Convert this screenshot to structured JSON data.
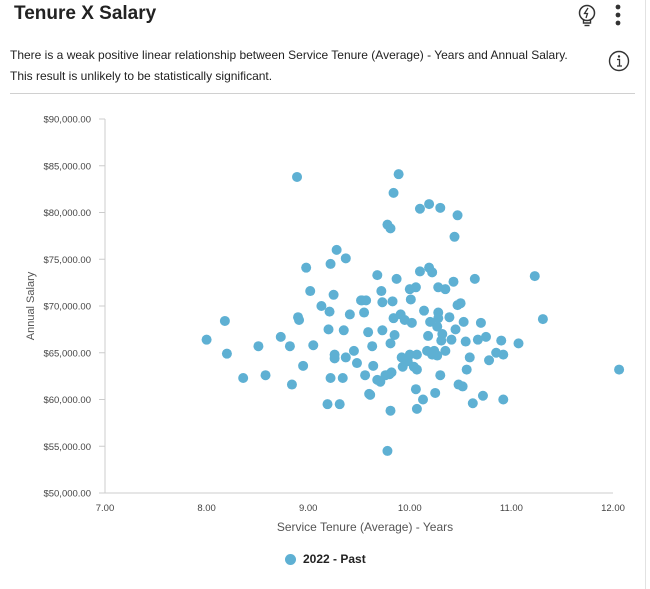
{
  "header": {
    "title": "Tenure X Salary",
    "insight_icon": "lightbulb-bolt-icon",
    "menu_icon": "kebab-menu-icon"
  },
  "description": {
    "line1": "There is a weak positive linear relationship between Service Tenure (Average) - Years and Annual Salary.",
    "line2": "This result is unlikely to be statistically significant.",
    "info_icon": "info-icon"
  },
  "chart_data": {
    "type": "scatter",
    "xlabel": "Service Tenure (Average) - Years",
    "ylabel": "Annual Salary",
    "xlim": [
      7,
      12
    ],
    "ylim": [
      50000,
      90000
    ],
    "x_ticks": [
      "7.00",
      "8.00",
      "9.00",
      "10.00",
      "11.00",
      "12.00"
    ],
    "y_ticks": [
      "$50,000.00",
      "$55,000.00",
      "$60,000.00",
      "$65,000.00",
      "$70,000.00",
      "$75,000.00",
      "$80,000.00",
      "$85,000.00",
      "$90,000.00"
    ],
    "grid": false,
    "legend_position": "bottom",
    "series": [
      {
        "name": "2022 - Past",
        "color": "#5eb0d3",
        "points": [
          [
            8.0,
            66400
          ],
          [
            8.18,
            68400
          ],
          [
            8.2,
            64900
          ],
          [
            8.36,
            62300
          ],
          [
            8.51,
            65700
          ],
          [
            8.58,
            62600
          ],
          [
            8.73,
            66700
          ],
          [
            8.82,
            65700
          ],
          [
            8.84,
            61600
          ],
          [
            8.89,
            83800
          ],
          [
            8.9,
            68800
          ],
          [
            8.91,
            68500
          ],
          [
            8.95,
            63600
          ],
          [
            8.98,
            74100
          ],
          [
            9.02,
            71600
          ],
          [
            9.05,
            65800
          ],
          [
            9.13,
            70000
          ],
          [
            9.19,
            59500
          ],
          [
            9.2,
            67500
          ],
          [
            9.21,
            69400
          ],
          [
            9.22,
            62300
          ],
          [
            9.22,
            74500
          ],
          [
            9.25,
            71200
          ],
          [
            9.26,
            64400
          ],
          [
            9.26,
            64800
          ],
          [
            9.28,
            76000
          ],
          [
            9.31,
            59500
          ],
          [
            9.34,
            62300
          ],
          [
            9.35,
            67400
          ],
          [
            9.37,
            75100
          ],
          [
            9.37,
            64500
          ],
          [
            9.41,
            69100
          ],
          [
            9.45,
            65200
          ],
          [
            9.48,
            63900
          ],
          [
            9.52,
            70600
          ],
          [
            9.53,
            70600
          ],
          [
            9.55,
            69300
          ],
          [
            9.57,
            70600
          ],
          [
            9.56,
            62600
          ],
          [
            9.59,
            67200
          ],
          [
            9.6,
            60600
          ],
          [
            9.61,
            60500
          ],
          [
            9.63,
            65700
          ],
          [
            9.64,
            63600
          ],
          [
            9.68,
            73300
          ],
          [
            9.68,
            62100
          ],
          [
            9.71,
            61900
          ],
          [
            9.72,
            71600
          ],
          [
            9.73,
            70400
          ],
          [
            9.73,
            67400
          ],
          [
            9.76,
            62600
          ],
          [
            9.78,
            78700
          ],
          [
            9.81,
            58800
          ],
          [
            9.81,
            78300
          ],
          [
            9.78,
            54500
          ],
          [
            9.8,
            62700
          ],
          [
            9.81,
            66000
          ],
          [
            9.82,
            62900
          ],
          [
            9.83,
            70500
          ],
          [
            9.84,
            68700
          ],
          [
            9.84,
            82100
          ],
          [
            9.85,
            66900
          ],
          [
            9.87,
            72900
          ],
          [
            9.89,
            84100
          ],
          [
            9.92,
            64500
          ],
          [
            9.91,
            69100
          ],
          [
            9.93,
            63500
          ],
          [
            9.95,
            68500
          ],
          [
            9.98,
            64100
          ],
          [
            10.0,
            64800
          ],
          [
            10.0,
            71800
          ],
          [
            10.01,
            70700
          ],
          [
            10.02,
            68200
          ],
          [
            10.04,
            63500
          ],
          [
            10.06,
            61100
          ],
          [
            10.06,
            72000
          ],
          [
            10.07,
            59000
          ],
          [
            10.07,
            63200
          ],
          [
            10.07,
            64800
          ],
          [
            10.1,
            80400
          ],
          [
            10.1,
            73700
          ],
          [
            10.13,
            60000
          ],
          [
            10.14,
            69500
          ],
          [
            10.17,
            65200
          ],
          [
            10.18,
            66800
          ],
          [
            10.19,
            80900
          ],
          [
            10.19,
            74100
          ],
          [
            10.2,
            68300
          ],
          [
            10.22,
            64800
          ],
          [
            10.22,
            73600
          ],
          [
            10.24,
            65200
          ],
          [
            10.25,
            60700
          ],
          [
            10.27,
            67800
          ],
          [
            10.27,
            64700
          ],
          [
            10.28,
            72000
          ],
          [
            10.28,
            69300
          ],
          [
            10.28,
            68700
          ],
          [
            10.3,
            62600
          ],
          [
            10.3,
            80500
          ],
          [
            10.31,
            66300
          ],
          [
            10.32,
            67000
          ],
          [
            10.35,
            71800
          ],
          [
            10.35,
            65200
          ],
          [
            10.39,
            68800
          ],
          [
            10.41,
            66400
          ],
          [
            10.43,
            72600
          ],
          [
            10.44,
            77400
          ],
          [
            10.45,
            67500
          ],
          [
            10.47,
            70100
          ],
          [
            10.47,
            79700
          ],
          [
            10.48,
            61600
          ],
          [
            10.5,
            70300
          ],
          [
            10.52,
            61400
          ],
          [
            10.53,
            68300
          ],
          [
            10.55,
            66200
          ],
          [
            10.56,
            63200
          ],
          [
            10.59,
            64500
          ],
          [
            10.62,
            59600
          ],
          [
            10.64,
            72900
          ],
          [
            10.67,
            66400
          ],
          [
            10.7,
            68200
          ],
          [
            10.72,
            60400
          ],
          [
            10.75,
            66700
          ],
          [
            10.78,
            64200
          ],
          [
            10.85,
            65000
          ],
          [
            10.9,
            66300
          ],
          [
            10.92,
            60000
          ],
          [
            10.92,
            64800
          ],
          [
            11.07,
            66000
          ],
          [
            11.23,
            73200
          ],
          [
            11.31,
            68600
          ],
          [
            12.06,
            63200
          ]
        ]
      }
    ]
  }
}
